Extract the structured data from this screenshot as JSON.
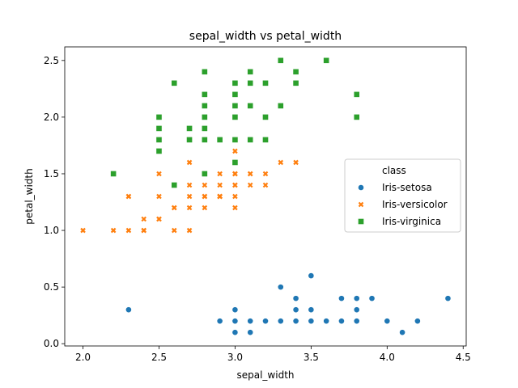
{
  "chart_data": {
    "type": "scatter",
    "title": "sepal_width vs petal_width",
    "xlabel": "sepal_width",
    "ylabel": "petal_width",
    "xlim": [
      1.88,
      4.52
    ],
    "ylim": [
      -0.02,
      2.62
    ],
    "xticks": [
      "2.0",
      "2.5",
      "3.0",
      "3.5",
      "4.0",
      "4.5"
    ],
    "yticks": [
      "0.0",
      "0.5",
      "1.0",
      "1.5",
      "2.0",
      "2.5"
    ],
    "legend": {
      "title": "class",
      "placement": "center-right"
    },
    "series": [
      {
        "name": "Iris-setosa",
        "marker": "circle",
        "color": "#1f77b4",
        "points": [
          [
            3.5,
            0.2
          ],
          [
            3.0,
            0.2
          ],
          [
            3.2,
            0.2
          ],
          [
            3.1,
            0.2
          ],
          [
            3.6,
            0.2
          ],
          [
            3.9,
            0.4
          ],
          [
            3.4,
            0.3
          ],
          [
            3.4,
            0.2
          ],
          [
            2.9,
            0.2
          ],
          [
            3.1,
            0.1
          ],
          [
            3.7,
            0.2
          ],
          [
            3.4,
            0.2
          ],
          [
            3.0,
            0.1
          ],
          [
            3.0,
            0.1
          ],
          [
            4.0,
            0.2
          ],
          [
            4.4,
            0.4
          ],
          [
            3.9,
            0.4
          ],
          [
            3.5,
            0.3
          ],
          [
            3.8,
            0.3
          ],
          [
            3.8,
            0.3
          ],
          [
            3.4,
            0.2
          ],
          [
            3.7,
            0.4
          ],
          [
            3.6,
            0.2
          ],
          [
            3.3,
            0.5
          ],
          [
            3.4,
            0.2
          ],
          [
            3.0,
            0.2
          ],
          [
            3.4,
            0.4
          ],
          [
            3.5,
            0.2
          ],
          [
            3.4,
            0.2
          ],
          [
            3.2,
            0.2
          ],
          [
            3.1,
            0.2
          ],
          [
            3.4,
            0.4
          ],
          [
            4.1,
            0.1
          ],
          [
            4.2,
            0.2
          ],
          [
            3.1,
            0.1
          ],
          [
            3.2,
            0.2
          ],
          [
            3.5,
            0.2
          ],
          [
            3.1,
            0.1
          ],
          [
            3.0,
            0.2
          ],
          [
            3.4,
            0.2
          ],
          [
            3.5,
            0.3
          ],
          [
            2.3,
            0.3
          ],
          [
            3.2,
            0.2
          ],
          [
            3.5,
            0.6
          ],
          [
            3.8,
            0.4
          ],
          [
            3.0,
            0.3
          ],
          [
            3.8,
            0.2
          ],
          [
            3.2,
            0.2
          ],
          [
            3.7,
            0.2
          ],
          [
            3.3,
            0.2
          ]
        ]
      },
      {
        "name": "Iris-versicolor",
        "marker": "x",
        "color": "#ff7f0e",
        "points": [
          [
            3.2,
            1.4
          ],
          [
            3.2,
            1.5
          ],
          [
            3.1,
            1.5
          ],
          [
            2.3,
            1.3
          ],
          [
            2.8,
            1.5
          ],
          [
            2.8,
            1.3
          ],
          [
            3.3,
            1.6
          ],
          [
            2.4,
            1.0
          ],
          [
            2.9,
            1.3
          ],
          [
            2.7,
            1.4
          ],
          [
            2.0,
            1.0
          ],
          [
            3.0,
            1.5
          ],
          [
            2.2,
            1.0
          ],
          [
            2.9,
            1.4
          ],
          [
            2.9,
            1.3
          ],
          [
            3.1,
            1.4
          ],
          [
            3.0,
            1.5
          ],
          [
            2.7,
            1.0
          ],
          [
            2.2,
            1.5
          ],
          [
            2.5,
            1.1
          ],
          [
            3.2,
            1.8
          ],
          [
            2.8,
            1.3
          ],
          [
            2.5,
            1.5
          ],
          [
            2.8,
            1.2
          ],
          [
            2.9,
            1.3
          ],
          [
            3.0,
            1.4
          ],
          [
            2.8,
            1.4
          ],
          [
            3.0,
            1.7
          ],
          [
            2.9,
            1.5
          ],
          [
            2.6,
            1.0
          ],
          [
            2.4,
            1.1
          ],
          [
            2.4,
            1.0
          ],
          [
            2.7,
            1.2
          ],
          [
            2.7,
            1.6
          ],
          [
            3.0,
            1.5
          ],
          [
            3.4,
            1.6
          ],
          [
            3.1,
            1.5
          ],
          [
            2.3,
            1.3
          ],
          [
            3.0,
            1.3
          ],
          [
            2.5,
            1.3
          ],
          [
            2.6,
            1.2
          ],
          [
            3.0,
            1.4
          ],
          [
            2.6,
            1.2
          ],
          [
            2.3,
            1.0
          ],
          [
            2.7,
            1.3
          ],
          [
            3.0,
            1.2
          ],
          [
            2.9,
            1.3
          ],
          [
            2.9,
            1.3
          ],
          [
            2.5,
            1.1
          ],
          [
            2.8,
            1.3
          ]
        ]
      },
      {
        "name": "Iris-virginica",
        "marker": "square",
        "color": "#2ca02c",
        "points": [
          [
            3.3,
            2.5
          ],
          [
            2.7,
            1.9
          ],
          [
            3.0,
            2.1
          ],
          [
            2.9,
            1.8
          ],
          [
            3.0,
            2.2
          ],
          [
            3.0,
            2.1
          ],
          [
            2.5,
            1.7
          ],
          [
            2.9,
            1.8
          ],
          [
            2.5,
            1.8
          ],
          [
            3.6,
            2.5
          ],
          [
            3.2,
            2.0
          ],
          [
            2.7,
            1.9
          ],
          [
            3.0,
            2.1
          ],
          [
            2.5,
            2.0
          ],
          [
            2.8,
            2.4
          ],
          [
            3.2,
            2.3
          ],
          [
            3.0,
            1.8
          ],
          [
            3.8,
            2.2
          ],
          [
            2.6,
            2.3
          ],
          [
            2.2,
            1.5
          ],
          [
            3.2,
            2.3
          ],
          [
            2.8,
            2.0
          ],
          [
            2.8,
            2.0
          ],
          [
            2.7,
            1.8
          ],
          [
            3.3,
            2.1
          ],
          [
            3.2,
            1.8
          ],
          [
            2.8,
            1.8
          ],
          [
            3.0,
            1.8
          ],
          [
            2.8,
            2.1
          ],
          [
            3.0,
            1.6
          ],
          [
            2.8,
            1.9
          ],
          [
            3.8,
            2.0
          ],
          [
            2.8,
            2.2
          ],
          [
            2.8,
            1.5
          ],
          [
            2.6,
            1.4
          ],
          [
            3.0,
            2.3
          ],
          [
            3.4,
            2.4
          ],
          [
            3.1,
            1.8
          ],
          [
            3.0,
            1.8
          ],
          [
            3.1,
            2.1
          ],
          [
            3.1,
            2.4
          ],
          [
            3.1,
            2.3
          ],
          [
            2.7,
            1.9
          ],
          [
            3.2,
            2.3
          ],
          [
            3.3,
            2.5
          ],
          [
            3.0,
            2.3
          ],
          [
            2.5,
            1.9
          ],
          [
            3.0,
            2.0
          ],
          [
            3.4,
            2.3
          ],
          [
            3.0,
            1.8
          ]
        ]
      }
    ]
  }
}
